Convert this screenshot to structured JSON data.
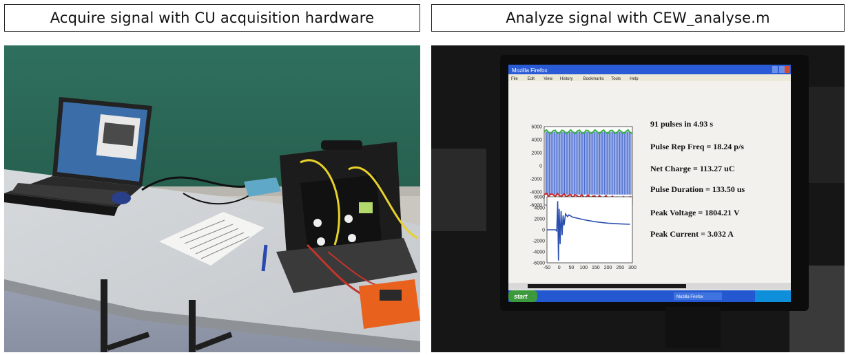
{
  "captions": {
    "left": "Acquire signal with CU acquisition hardware",
    "right": "Analyze signal with CEW_analyse.m"
  },
  "screen": {
    "window_title": "Mozilla Firefox",
    "menu": [
      "File",
      "Edit",
      "View",
      "History",
      "Bookmarks",
      "Tools",
      "Help"
    ],
    "taskbar_start": "start",
    "taskbar_items": [
      "Mozilla Firefox"
    ],
    "results": [
      "91 pulses in 4.93 s",
      "Pulse Rep Freq = 18.24 p/s",
      "Net Charge = 113.27 uC",
      "Pulse Duration = 133.50 us",
      "Peak Voltage = 1804.21 V",
      "Peak Current = 3.032 A"
    ]
  },
  "chart_data": [
    {
      "type": "line",
      "yticks": [
        "6000",
        "4000",
        "2000",
        "0",
        "-2000",
        "-4000",
        "-6000"
      ],
      "ylim": [
        -6000,
        6000
      ],
      "pulse_count": 91,
      "colors": {
        "signal": "#3a5fcd",
        "upper": "#3cb043",
        "lower": "#cc2222"
      }
    },
    {
      "type": "line",
      "yticks": [
        "6000",
        "4000",
        "2000",
        "0",
        "-2000",
        "-4000",
        "-6000"
      ],
      "xticks": [
        "-50",
        "0",
        "50",
        "100",
        "150",
        "200",
        "250",
        "300"
      ],
      "ylim": [
        -6000,
        6000
      ],
      "xlim": [
        -50,
        300
      ],
      "colors": {
        "signal": "#2b4fb0"
      }
    }
  ]
}
